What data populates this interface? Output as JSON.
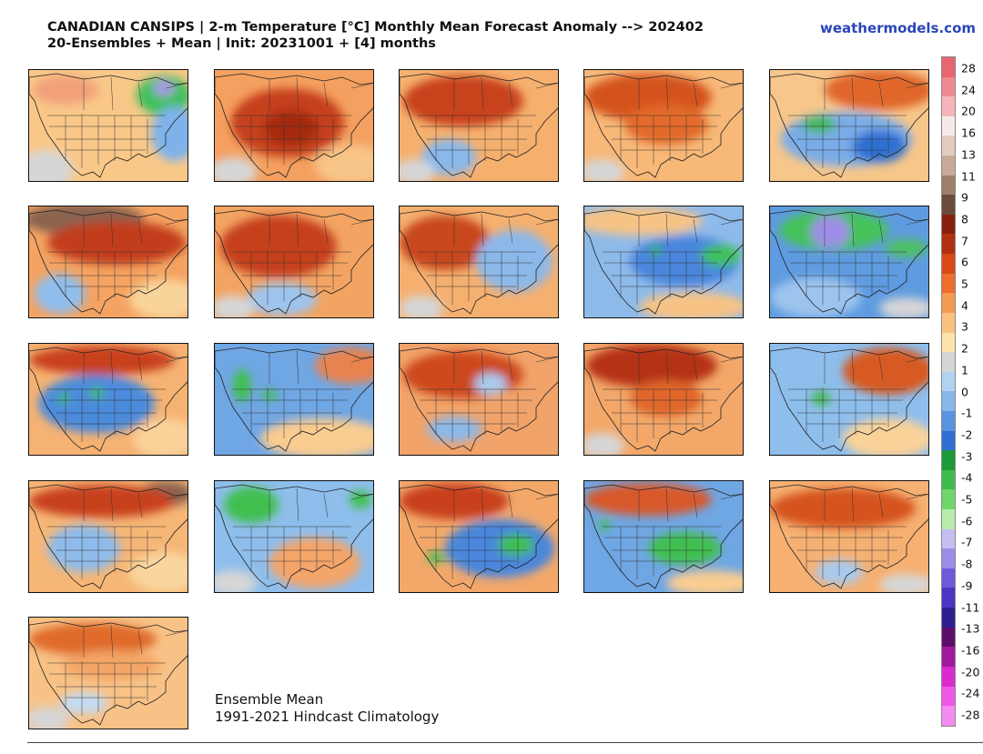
{
  "header": {
    "title_line1": "CANADIAN CANSIPS | 2-m Temperature [°C] Monthly Mean Forecast Anomaly --> 202402",
    "title_line2": "20-Ensembles + Mean | Init: 20231001 + [4] months",
    "brand": "weathermodels.com"
  },
  "footer": {
    "line1": "Ensemble Mean",
    "line2": "1991-2021 Hindcast Climatology"
  },
  "colorbar": {
    "labels": [
      "28",
      "24",
      "20",
      "16",
      "13",
      "11",
      "9",
      "8",
      "7",
      "6",
      "5",
      "4",
      "3",
      "2",
      "1",
      "0",
      "-1",
      "-2",
      "-3",
      "-4",
      "-5",
      "-6",
      "-7",
      "-8",
      "-9",
      "-11",
      "-13",
      "-16",
      "-20",
      "-24",
      "-28"
    ],
    "colors": [
      "#e8666f",
      "#ef8a92",
      "#f6b5ba",
      "#f5e9ea",
      "#e2ccbf",
      "#c9aa97",
      "#a0806c",
      "#6b4b3c",
      "#8a1f0c",
      "#b1300f",
      "#d94a18",
      "#ee6d2a",
      "#f59a51",
      "#f9c27d",
      "#fde3a8",
      "#d6d6d6",
      "#b2d2f1",
      "#87b6ea",
      "#5a94de",
      "#2f6fd2",
      "#1c9a3a",
      "#3dbc4c",
      "#70d66a",
      "#b8ecae",
      "#c6bdf0",
      "#9d8de6",
      "#6e5ad8",
      "#4a36c2",
      "#2b1f92",
      "#5c0f6a",
      "#a3199c",
      "#d92ccf",
      "#f057e6",
      "#f58af0"
    ]
  },
  "panels": [
    {
      "id": "member-01",
      "tone": "neutral",
      "base": "#f9c888",
      "blobs": [
        {
          "c": "#3fc05a",
          "x": 148,
          "y": 28,
          "rx": 30,
          "ry": 22
        },
        {
          "c": "#a898e6",
          "x": 148,
          "y": 20,
          "rx": 12,
          "ry": 9
        },
        {
          "c": "#7fb2ea",
          "x": 160,
          "y": 70,
          "rx": 26,
          "ry": 30
        },
        {
          "c": "#f2a07a",
          "x": 40,
          "y": 22,
          "rx": 36,
          "ry": 16
        },
        {
          "c": "#d6d6d6",
          "x": 18,
          "y": 110,
          "rx": 30,
          "ry": 22
        }
      ]
    },
    {
      "id": "member-02",
      "tone": "warm",
      "base": "#f4a060",
      "blobs": [
        {
          "c": "#c6401c",
          "x": 80,
          "y": 58,
          "rx": 62,
          "ry": 38
        },
        {
          "c": "#a52a10",
          "x": 84,
          "y": 64,
          "rx": 30,
          "ry": 20
        },
        {
          "c": "#f7c587",
          "x": 150,
          "y": 104,
          "rx": 40,
          "ry": 22
        },
        {
          "c": "#d6d6d6",
          "x": 20,
          "y": 112,
          "rx": 26,
          "ry": 16
        }
      ]
    },
    {
      "id": "member-03",
      "tone": "warm",
      "base": "#f6b06e",
      "blobs": [
        {
          "c": "#c8421c",
          "x": 70,
          "y": 34,
          "rx": 66,
          "ry": 28
        },
        {
          "c": "#8ab8ea",
          "x": 54,
          "y": 96,
          "rx": 30,
          "ry": 20
        },
        {
          "c": "#d6d6d6",
          "x": 16,
          "y": 112,
          "rx": 22,
          "ry": 14
        }
      ]
    },
    {
      "id": "member-04",
      "tone": "warm",
      "base": "#f7b878",
      "blobs": [
        {
          "c": "#d4521e",
          "x": 70,
          "y": 30,
          "rx": 70,
          "ry": 26
        },
        {
          "c": "#e26a2c",
          "x": 90,
          "y": 60,
          "rx": 46,
          "ry": 22
        },
        {
          "c": "#d6d6d6",
          "x": 20,
          "y": 112,
          "rx": 24,
          "ry": 14
        }
      ]
    },
    {
      "id": "member-05",
      "tone": "cool",
      "base": "#f7c68a",
      "blobs": [
        {
          "c": "#e0662c",
          "x": 120,
          "y": 22,
          "rx": 60,
          "ry": 22
        },
        {
          "c": "#79ace8",
          "x": 84,
          "y": 76,
          "rx": 72,
          "ry": 30
        },
        {
          "c": "#3fb84e",
          "x": 54,
          "y": 60,
          "rx": 18,
          "ry": 9
        },
        {
          "c": "#2f6fd2",
          "x": 120,
          "y": 84,
          "rx": 30,
          "ry": 18
        }
      ]
    },
    {
      "id": "member-06",
      "tone": "warm",
      "base": "#f4a362",
      "blobs": [
        {
          "c": "#8a6450",
          "x": 60,
          "y": 14,
          "rx": 66,
          "ry": 18
        },
        {
          "c": "#c23c1a",
          "x": 96,
          "y": 40,
          "rx": 76,
          "ry": 24
        },
        {
          "c": "#90bdeb",
          "x": 34,
          "y": 96,
          "rx": 28,
          "ry": 22
        },
        {
          "c": "#f9d49a",
          "x": 150,
          "y": 102,
          "rx": 40,
          "ry": 22
        }
      ]
    },
    {
      "id": "member-07",
      "tone": "warm",
      "base": "#f3a463",
      "blobs": [
        {
          "c": "#c63f1b",
          "x": 70,
          "y": 44,
          "rx": 64,
          "ry": 34
        },
        {
          "c": "#9cc4ee",
          "x": 74,
          "y": 102,
          "rx": 38,
          "ry": 18
        },
        {
          "c": "#d6d6d6",
          "x": 20,
          "y": 112,
          "rx": 24,
          "ry": 14
        }
      ]
    },
    {
      "id": "member-08",
      "tone": "mixed",
      "base": "#f5b070",
      "blobs": [
        {
          "c": "#c8461e",
          "x": 50,
          "y": 40,
          "rx": 50,
          "ry": 30
        },
        {
          "c": "#8cb8ea",
          "x": 126,
          "y": 60,
          "rx": 42,
          "ry": 34
        },
        {
          "c": "#d6d6d6",
          "x": 24,
          "y": 112,
          "rx": 24,
          "ry": 14
        }
      ]
    },
    {
      "id": "member-09",
      "tone": "cool",
      "base": "#8ebaea",
      "blobs": [
        {
          "c": "#f7c385",
          "x": 60,
          "y": 16,
          "rx": 70,
          "ry": 16
        },
        {
          "c": "#4a86dc",
          "x": 110,
          "y": 60,
          "rx": 60,
          "ry": 28
        },
        {
          "c": "#3fc05a",
          "x": 150,
          "y": 54,
          "rx": 22,
          "ry": 12
        },
        {
          "c": "#2fb44a",
          "x": 78,
          "y": 48,
          "rx": 6,
          "ry": 6
        },
        {
          "c": "#f7c385",
          "x": 120,
          "y": 110,
          "rx": 60,
          "ry": 16
        }
      ]
    },
    {
      "id": "member-10",
      "tone": "cold",
      "base": "#5f9be0",
      "blobs": [
        {
          "c": "#44c25a",
          "x": 70,
          "y": 26,
          "rx": 60,
          "ry": 22
        },
        {
          "c": "#9d8de6",
          "x": 66,
          "y": 28,
          "rx": 22,
          "ry": 18
        },
        {
          "c": "#4ec064",
          "x": 150,
          "y": 46,
          "rx": 24,
          "ry": 10
        },
        {
          "c": "#9cc4ee",
          "x": 50,
          "y": 100,
          "rx": 50,
          "ry": 22
        },
        {
          "c": "#d6d6d6",
          "x": 150,
          "y": 112,
          "rx": 30,
          "ry": 12
        }
      ]
    },
    {
      "id": "member-11",
      "tone": "cool",
      "base": "#f6b272",
      "blobs": [
        {
          "c": "#c8401b",
          "x": 80,
          "y": 18,
          "rx": 80,
          "ry": 16
        },
        {
          "c": "#4b8bdc",
          "x": 74,
          "y": 66,
          "rx": 64,
          "ry": 32
        },
        {
          "c": "#3fbf50",
          "x": 74,
          "y": 54,
          "rx": 8,
          "ry": 6
        },
        {
          "c": "#3fbf50",
          "x": 38,
          "y": 60,
          "rx": 6,
          "ry": 6
        },
        {
          "c": "#f9d29a",
          "x": 150,
          "y": 104,
          "rx": 36,
          "ry": 22
        }
      ]
    },
    {
      "id": "member-12",
      "tone": "cool",
      "base": "#6fa6e4",
      "blobs": [
        {
          "c": "#e88250",
          "x": 150,
          "y": 24,
          "rx": 40,
          "ry": 20
        },
        {
          "c": "#3fbf50",
          "x": 30,
          "y": 46,
          "rx": 10,
          "ry": 18
        },
        {
          "c": "#3fbf50",
          "x": 60,
          "y": 56,
          "rx": 8,
          "ry": 6
        },
        {
          "c": "#f9cc90",
          "x": 120,
          "y": 104,
          "rx": 70,
          "ry": 22
        }
      ]
    },
    {
      "id": "member-13",
      "tone": "warm",
      "base": "#f2a36a",
      "blobs": [
        {
          "c": "#cd4a1f",
          "x": 70,
          "y": 34,
          "rx": 66,
          "ry": 26
        },
        {
          "c": "#a9caee",
          "x": 100,
          "y": 44,
          "rx": 18,
          "ry": 12
        },
        {
          "c": "#8cb8ea",
          "x": 60,
          "y": 94,
          "rx": 30,
          "ry": 14
        }
      ]
    },
    {
      "id": "member-14",
      "tone": "warm",
      "base": "#f3a86a",
      "blobs": [
        {
          "c": "#b53214",
          "x": 74,
          "y": 24,
          "rx": 72,
          "ry": 24
        },
        {
          "c": "#e0662c",
          "x": 90,
          "y": 60,
          "rx": 40,
          "ry": 20
        },
        {
          "c": "#d6d6d6",
          "x": 20,
          "y": 112,
          "rx": 24,
          "ry": 14
        }
      ]
    },
    {
      "id": "member-15",
      "tone": "cool",
      "base": "#8ebeec",
      "blobs": [
        {
          "c": "#d75a22",
          "x": 130,
          "y": 30,
          "rx": 50,
          "ry": 26
        },
        {
          "c": "#3fb84e",
          "x": 56,
          "y": 60,
          "rx": 10,
          "ry": 8
        },
        {
          "c": "#f9d29a",
          "x": 130,
          "y": 104,
          "rx": 50,
          "ry": 22
        }
      ]
    },
    {
      "id": "member-16",
      "tone": "mixed",
      "base": "#f6b676",
      "blobs": [
        {
          "c": "#8a6450",
          "x": 150,
          "y": 14,
          "rx": 30,
          "ry": 14
        },
        {
          "c": "#c7401b",
          "x": 80,
          "y": 22,
          "rx": 80,
          "ry": 18
        },
        {
          "c": "#8fbbea",
          "x": 60,
          "y": 74,
          "rx": 40,
          "ry": 26
        },
        {
          "c": "#f9d69e",
          "x": 150,
          "y": 100,
          "rx": 40,
          "ry": 22
        }
      ]
    },
    {
      "id": "member-17",
      "tone": "cool",
      "base": "#8ebeec",
      "blobs": [
        {
          "c": "#3fbf50",
          "x": 40,
          "y": 26,
          "rx": 30,
          "ry": 20
        },
        {
          "c": "#3fbf50",
          "x": 160,
          "y": 20,
          "rx": 12,
          "ry": 10
        },
        {
          "c": "#f4a56a",
          "x": 110,
          "y": 90,
          "rx": 50,
          "ry": 28
        },
        {
          "c": "#d6d6d6",
          "x": 20,
          "y": 112,
          "rx": 26,
          "ry": 14
        }
      ]
    },
    {
      "id": "member-18",
      "tone": "mixed",
      "base": "#f3a86a",
      "blobs": [
        {
          "c": "#c8401b",
          "x": 60,
          "y": 22,
          "rx": 60,
          "ry": 20
        },
        {
          "c": "#4a86dc",
          "x": 110,
          "y": 74,
          "rx": 60,
          "ry": 32
        },
        {
          "c": "#3fbf50",
          "x": 128,
          "y": 70,
          "rx": 20,
          "ry": 12
        },
        {
          "c": "#3fbf50",
          "x": 40,
          "y": 84,
          "rx": 10,
          "ry": 6
        }
      ]
    },
    {
      "id": "member-19",
      "tone": "cool",
      "base": "#6fa6e4",
      "blobs": [
        {
          "c": "#d8582a",
          "x": 70,
          "y": 20,
          "rx": 70,
          "ry": 18
        },
        {
          "c": "#3fbf50",
          "x": 110,
          "y": 74,
          "rx": 40,
          "ry": 18
        },
        {
          "c": "#3fbf50",
          "x": 22,
          "y": 48,
          "rx": 6,
          "ry": 6
        },
        {
          "c": "#f9cc90",
          "x": 140,
          "y": 112,
          "rx": 50,
          "ry": 14
        }
      ]
    },
    {
      "id": "member-20",
      "tone": "warm",
      "base": "#f6b072",
      "blobs": [
        {
          "c": "#d5531f",
          "x": 80,
          "y": 30,
          "rx": 80,
          "ry": 22
        },
        {
          "c": "#a9caee",
          "x": 76,
          "y": 100,
          "rx": 26,
          "ry": 14
        },
        {
          "c": "#d6d6d6",
          "x": 150,
          "y": 114,
          "rx": 30,
          "ry": 12
        }
      ]
    },
    {
      "id": "ensemble-mean",
      "tone": "warm",
      "base": "#f8c286",
      "blobs": [
        {
          "c": "#e06a2c",
          "x": 70,
          "y": 24,
          "rx": 70,
          "ry": 18
        },
        {
          "c": "#f3a566",
          "x": 90,
          "y": 52,
          "rx": 54,
          "ry": 16
        },
        {
          "c": "#c2dbf2",
          "x": 60,
          "y": 94,
          "rx": 26,
          "ry": 12
        },
        {
          "c": "#d6d6d6",
          "x": 20,
          "y": 112,
          "rx": 24,
          "ry": 14
        }
      ]
    }
  ]
}
